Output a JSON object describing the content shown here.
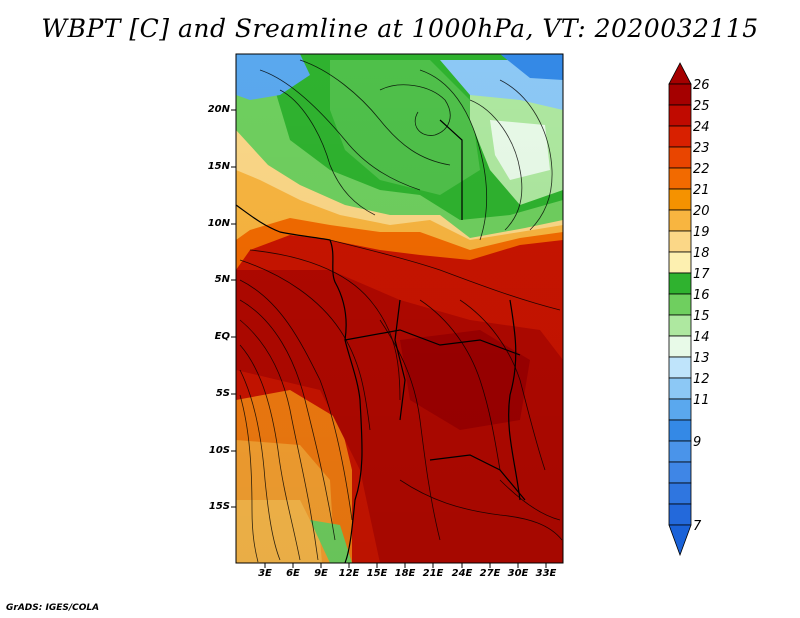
{
  "title": "WBPT [C] and Sreamline at 1000hPa, VT: 2020032115",
  "credit": "GrADS: IGES/COLA",
  "lat_labels": [
    "20N",
    "15N",
    "10N",
    "5N",
    "EQ",
    "5S",
    "10S",
    "15S"
  ],
  "lon_labels": [
    "3E",
    "6E",
    "9E",
    "12E",
    "15E",
    "18E",
    "21E",
    "24E",
    "27E",
    "30E",
    "33E"
  ],
  "colorbar": {
    "labels": [
      "26",
      "25",
      "24",
      "23",
      "22",
      "21",
      "20",
      "19",
      "18",
      "17",
      "16",
      "15",
      "14",
      "13",
      "12",
      "11",
      "9",
      "7"
    ],
    "colors": [
      "#a50000",
      "#c00a00",
      "#d82000",
      "#e94500",
      "#f26a00",
      "#f59200",
      "#f8b540",
      "#fbd787",
      "#fdf0b0",
      "#2fb22f",
      "#6fcf5f",
      "#aee8a0",
      "#e8fae8",
      "#bfe4fb",
      "#8cc8f5",
      "#5aa8ee",
      "#3489e6",
      "#1a62d8"
    ]
  },
  "map": {
    "variable": "WBPT",
    "units": "C",
    "level": "1000hPa",
    "valid_time": "2020032115"
  }
}
